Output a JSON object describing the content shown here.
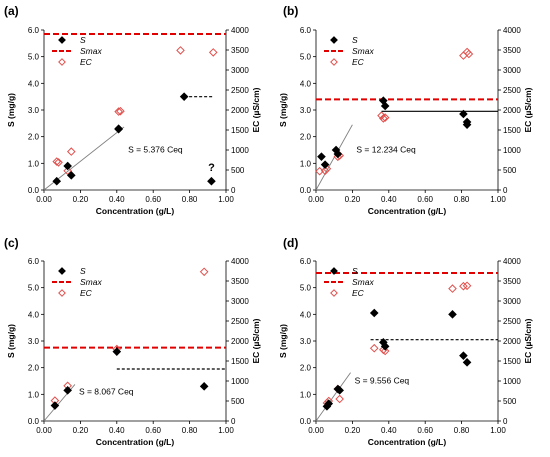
{
  "chart_data": [
    {
      "type": "scatter",
      "panel_label": "(a)",
      "xlabel": "Concentration (g/L)",
      "ylabel": "S (mg/g)",
      "y2label": "EC (µS/cm)",
      "xlim": [
        0,
        1
      ],
      "ylim": [
        0,
        6
      ],
      "y2lim": [
        0,
        4000
      ],
      "xticks": [
        "0.00",
        "0.20",
        "0.40",
        "0.60",
        "0.80",
        "1.00"
      ],
      "yticks": [
        "0.0",
        "1.0",
        "2.0",
        "3.0",
        "4.0",
        "5.0",
        "6.0"
      ],
      "y2ticks": [
        "0",
        "500",
        "1000",
        "1500",
        "2000",
        "2500",
        "3000",
        "3500",
        "4000"
      ],
      "legend": [
        "S",
        "Smax",
        "EC"
      ],
      "legend_position": "top-left",
      "grid": false,
      "S": [
        [
          0.07,
          0.33
        ],
        [
          0.13,
          0.9
        ],
        [
          0.15,
          0.55
        ],
        [
          0.41,
          2.3
        ],
        [
          0.41,
          2.28
        ],
        [
          0.77,
          3.5
        ],
        [
          0.92,
          0.33
        ]
      ],
      "EC": [
        [
          0.07,
          710
        ],
        [
          0.08,
          690
        ],
        [
          0.13,
          480
        ],
        [
          0.15,
          960
        ],
        [
          0.41,
          1960
        ],
        [
          0.42,
          1970
        ],
        [
          0.75,
          3490
        ],
        [
          0.93,
          3440
        ]
      ],
      "Smax": 5.85,
      "plateau": {
        "y": 3.5,
        "x0": 0.77,
        "x1": 0.93
      },
      "fit": {
        "slope": 5.376,
        "x0": 0.0,
        "x1": 0.44
      },
      "annotation": "S = 5.376 Ceq",
      "extra_mark": "?"
    },
    {
      "type": "scatter",
      "panel_label": "(b)",
      "xlabel": "Concentration (g/L)",
      "ylabel": "S (mg/g)",
      "y2label": "EC (µS/cm)",
      "xlim": [
        0,
        1
      ],
      "ylim": [
        0,
        6
      ],
      "y2lim": [
        0,
        4000
      ],
      "xticks": [
        "0.00",
        "0.20",
        "0.40",
        "0.60",
        "0.80",
        "1.00"
      ],
      "yticks": [
        "0.0",
        "1.0",
        "2.0",
        "3.0",
        "4.0",
        "5.0",
        "6.0"
      ],
      "y2ticks": [
        "0",
        "500",
        "1000",
        "1500",
        "2000",
        "2500",
        "3000",
        "3500",
        "4000"
      ],
      "legend": [
        "S",
        "Smax",
        "EC"
      ],
      "legend_position": "top-left",
      "grid": false,
      "S": [
        [
          0.03,
          1.25
        ],
        [
          0.05,
          0.95
        ],
        [
          0.11,
          1.5
        ],
        [
          0.12,
          1.35
        ],
        [
          0.37,
          3.35
        ],
        [
          0.38,
          3.15
        ],
        [
          0.81,
          2.85
        ],
        [
          0.83,
          2.55
        ],
        [
          0.83,
          2.45
        ]
      ],
      "EC": [
        [
          0.02,
          470
        ],
        [
          0.05,
          480
        ],
        [
          0.06,
          530
        ],
        [
          0.12,
          830
        ],
        [
          0.13,
          860
        ],
        [
          0.36,
          1860
        ],
        [
          0.37,
          1790
        ],
        [
          0.38,
          1810
        ],
        [
          0.81,
          3360
        ],
        [
          0.83,
          3450
        ],
        [
          0.84,
          3400
        ]
      ],
      "Smax": 3.4,
      "plateau": {
        "y": 2.95,
        "x0": 0.36,
        "x1": 1.0,
        "style": "solid"
      },
      "fit": {
        "slope": 12.234,
        "x0": 0.0,
        "x1": 0.2
      },
      "annotation": "S = 12.234 Ceq"
    },
    {
      "type": "scatter",
      "panel_label": "(c)",
      "xlabel": "Concentration (g/L)",
      "ylabel": "S (mg/g)",
      "y2label": "EC (µS/cm)",
      "xlim": [
        0,
        1
      ],
      "ylim": [
        0,
        6
      ],
      "y2lim": [
        0,
        4000
      ],
      "xticks": [
        "0.00",
        "0.20",
        "0.40",
        "0.60",
        "0.80",
        "1.00"
      ],
      "yticks": [
        "0.0",
        "1.0",
        "2.0",
        "3.0",
        "4.0",
        "5.0",
        "6.0"
      ],
      "y2ticks": [
        "0",
        "500",
        "1000",
        "1500",
        "2000",
        "2500",
        "3000",
        "3500",
        "4000"
      ],
      "legend": [
        "S",
        "Smax",
        "EC"
      ],
      "legend_position": "top-left",
      "grid": false,
      "S": [
        [
          0.06,
          0.58
        ],
        [
          0.13,
          1.15
        ],
        [
          0.4,
          2.6
        ],
        [
          0.88,
          1.3
        ]
      ],
      "EC": [
        [
          0.06,
          510
        ],
        [
          0.13,
          880
        ],
        [
          0.4,
          1800
        ],
        [
          0.88,
          3730
        ]
      ],
      "Smax": 2.75,
      "plateau": {
        "y": 1.95,
        "x0": 0.4,
        "x1": 1.0
      },
      "fit": {
        "slope": 8.067,
        "x0": 0.0,
        "x1": 0.17
      },
      "annotation": "S = 8.067 Ceq"
    },
    {
      "type": "scatter",
      "panel_label": "(d)",
      "xlabel": "Concentration (g/L)",
      "ylabel": "S (mg/g)",
      "y2label": "EC (µS/cm)",
      "xlim": [
        0,
        1
      ],
      "ylim": [
        0,
        6
      ],
      "y2lim": [
        0,
        4000
      ],
      "xticks": [
        "0.00",
        "0.20",
        "0.40",
        "0.60",
        "0.80",
        "1.00"
      ],
      "yticks": [
        "0.0",
        "1.0",
        "2.0",
        "3.0",
        "4.0",
        "5.0",
        "6.0"
      ],
      "y2ticks": [
        "0",
        "500",
        "1000",
        "1500",
        "2000",
        "2500",
        "3000",
        "3500",
        "4000"
      ],
      "legend": [
        "S",
        "Smax",
        "EC"
      ],
      "legend_position": "top-left",
      "grid": false,
      "S": [
        [
          0.06,
          0.55
        ],
        [
          0.07,
          0.65
        ],
        [
          0.12,
          1.2
        ],
        [
          0.13,
          1.15
        ],
        [
          0.32,
          4.05
        ],
        [
          0.37,
          2.95
        ],
        [
          0.38,
          2.8
        ],
        [
          0.75,
          4.0
        ],
        [
          0.81,
          2.45
        ],
        [
          0.83,
          2.2
        ]
      ],
      "EC": [
        [
          0.06,
          450
        ],
        [
          0.07,
          500
        ],
        [
          0.12,
          800
        ],
        [
          0.13,
          550
        ],
        [
          0.32,
          1820
        ],
        [
          0.37,
          1780
        ],
        [
          0.38,
          1750
        ],
        [
          0.75,
          3310
        ],
        [
          0.81,
          3370
        ],
        [
          0.83,
          3380
        ]
      ],
      "Smax": 5.55,
      "plateau": {
        "y": 3.05,
        "x0": 0.3,
        "x1": 1.0
      },
      "fit": {
        "slope": 9.556,
        "x0": 0.0,
        "x1": 0.19
      },
      "annotation": "S = 9.556 Ceq"
    }
  ],
  "colors": {
    "S": "#000000",
    "Smax": "#e00000",
    "EC": "#e0504d",
    "fit": "#808080"
  }
}
